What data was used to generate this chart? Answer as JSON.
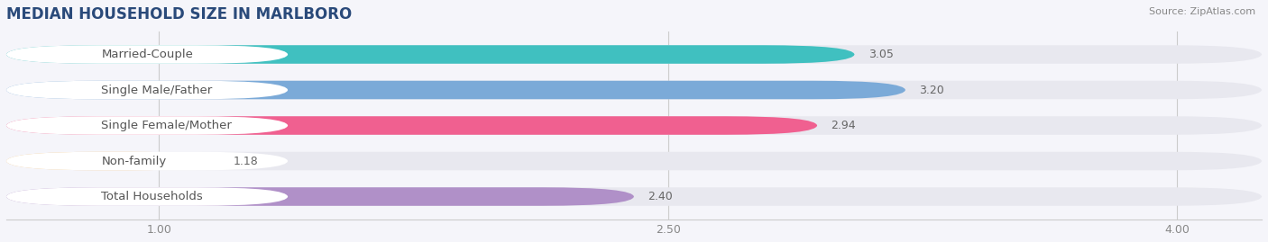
{
  "title": "MEDIAN HOUSEHOLD SIZE IN MARLBORO",
  "source": "Source: ZipAtlas.com",
  "categories": [
    "Married-Couple",
    "Single Male/Father",
    "Single Female/Mother",
    "Non-family",
    "Total Households"
  ],
  "values": [
    3.05,
    3.2,
    2.94,
    1.18,
    2.4
  ],
  "bar_colors": [
    "#40c0c0",
    "#7baad8",
    "#f06090",
    "#f5c98a",
    "#b090c8"
  ],
  "xlim_start": 0.55,
  "xlim_end": 4.25,
  "xmin": 1.0,
  "xmax": 4.0,
  "xticks": [
    1.0,
    2.5,
    4.0
  ],
  "xtick_labels": [
    "1.00",
    "2.50",
    "4.00"
  ],
  "bar_height": 0.52,
  "background_color": "#f5f5fa",
  "bar_bg_color": "#e8e8ef",
  "label_bg_color": "#ffffff",
  "title_fontsize": 12,
  "label_fontsize": 9.5,
  "value_fontsize": 9,
  "label_text_color": "#555555",
  "value_text_color": "#666666",
  "title_color": "#2a4a7a"
}
